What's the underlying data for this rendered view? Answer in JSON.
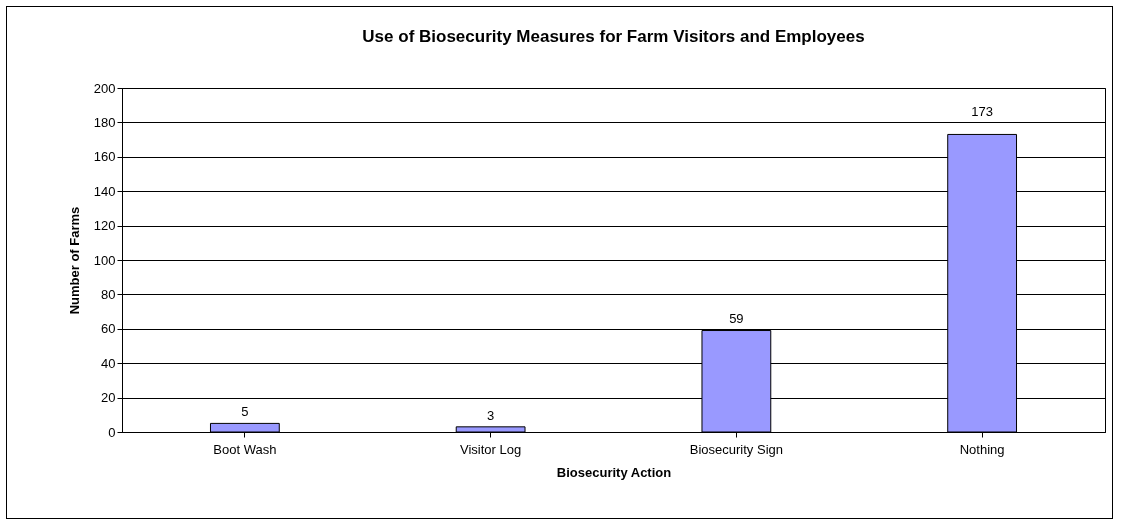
{
  "chart_data": {
    "type": "bar",
    "title": "Use of Biosecurity Measures for Farm Visitors and Employees",
    "xlabel": "Biosecurity Action",
    "ylabel": "Number of Farms",
    "categories": [
      "Boot Wash",
      "Visitor Log",
      "Biosecurity Sign",
      "Nothing"
    ],
    "values": [
      5,
      3,
      59,
      173
    ],
    "color": "#9999ff",
    "ylim": [
      0,
      200
    ],
    "yticks": [
      0,
      20,
      40,
      60,
      80,
      100,
      120,
      140,
      160,
      180,
      200
    ],
    "grid": "y",
    "data_labels": true
  }
}
